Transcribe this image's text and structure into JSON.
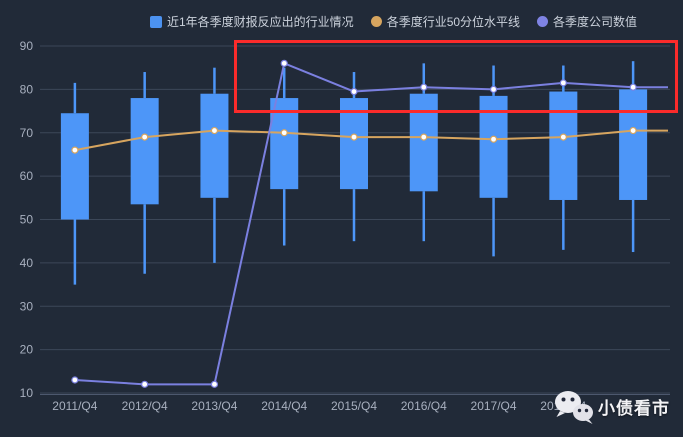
{
  "colors": {
    "background": "#212a38",
    "grid": "#3c4758",
    "axis": "#4d586e",
    "tick_text": "#a8b0bf",
    "candle": "#4d96f8",
    "median_line": "#d7a55f",
    "company_line": "#7b80e0",
    "annotation": "#fb2b2b",
    "legend_text": "#ccd2dc",
    "watermark_text": "#f3f3f5"
  },
  "legend": {
    "items": [
      {
        "label": "近1年各季度财报反应出的行业情况",
        "marker": "square",
        "color": "#4c92f0"
      },
      {
        "label": "各季度行业50分位水平线",
        "marker": "circle",
        "color": "#d7a55f"
      },
      {
        "label": "各季度公司数值",
        "marker": "circle",
        "color": "#7f83e3"
      }
    ]
  },
  "watermark": {
    "text": "小债看市",
    "icon": "wechat-icon"
  },
  "annotation": {
    "shape": "rectangle",
    "color": "#fb2b2b",
    "highlights": "各季度公司数值 2014/Q4 onward (values ~72-91)"
  },
  "chart_data": {
    "type": "candlestick+line",
    "title": "",
    "xlabel": "",
    "ylabel": "",
    "ylim": [
      10,
      90
    ],
    "yticks": [
      10,
      20,
      30,
      40,
      50,
      60,
      70,
      80,
      90
    ],
    "grid": true,
    "legend_position": "top",
    "categories": [
      "2011/Q4",
      "2012/Q4",
      "2013/Q4",
      "2014/Q4",
      "2015/Q4",
      "2016/Q4",
      "2017/Q4",
      "2018/Q4",
      ""
    ],
    "series": [
      {
        "name": "近1年各季度财报反应出的行业情况",
        "id": "industry-range",
        "type": "candlestick",
        "color": "#4d96f8",
        "data": [
          {
            "low": 35,
            "q1": 50,
            "q3": 74.5,
            "high": 81.5
          },
          {
            "low": 37.5,
            "q1": 53.5,
            "q3": 78,
            "high": 84
          },
          {
            "low": 40,
            "q1": 55,
            "q3": 79,
            "high": 85
          },
          {
            "low": 44,
            "q1": 57,
            "q3": 78,
            "high": 85
          },
          {
            "low": 45,
            "q1": 57,
            "q3": 78,
            "high": 84
          },
          {
            "low": 45,
            "q1": 56.5,
            "q3": 79,
            "high": 86
          },
          {
            "low": 41.5,
            "q1": 55,
            "q3": 78.5,
            "high": 85.5
          },
          {
            "low": 43,
            "q1": 54.5,
            "q3": 79.5,
            "high": 85.5
          },
          {
            "low": 42.5,
            "q1": 54.5,
            "q3": 80,
            "high": 86.5
          }
        ]
      },
      {
        "name": "各季度行业50分位水平线",
        "id": "industry-median",
        "type": "line",
        "color": "#d7a55f",
        "values": [
          66,
          69,
          70.5,
          70,
          69,
          69,
          68.5,
          69,
          70.5
        ]
      },
      {
        "name": "各季度公司数值",
        "id": "company-value",
        "type": "line",
        "color": "#7b80e0",
        "values": [
          13,
          12,
          12,
          86,
          79.5,
          80.5,
          80,
          81.5,
          80.5
        ]
      }
    ]
  }
}
